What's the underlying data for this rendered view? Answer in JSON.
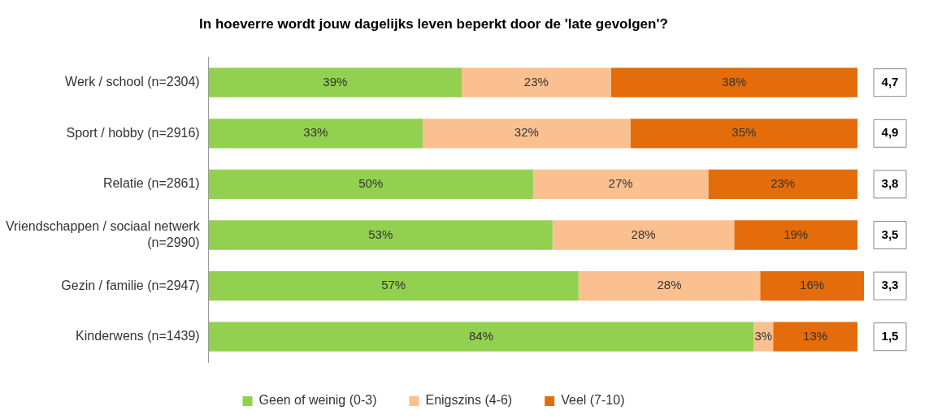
{
  "chart_data": {
    "type": "bar",
    "orientation": "horizontal",
    "stacked": true,
    "title": "In hoeverre wordt jouw dagelijks leven beperkt door de 'late gevolgen'?",
    "categories": [
      "Werk / school (n=2304)",
      "Sport / hobby (n=2916)",
      "Relatie (n=2861)",
      "Vriendschappen / sociaal netwerk (n=2990)",
      "Gezin / familie (n=2947)",
      "Kinderwens (n=1439)"
    ],
    "series": [
      {
        "name": "Geen of weinig (0-3)",
        "color": "#92d050",
        "values": [
          39,
          33,
          50,
          53,
          57,
          84
        ],
        "value_labels": [
          "39%",
          "33%",
          "50%",
          "53%",
          "57%",
          "84%"
        ]
      },
      {
        "name": "Enigszins (4-6)",
        "color": "#fac090",
        "values": [
          23,
          32,
          27,
          28,
          28,
          3
        ],
        "value_labels": [
          "23%",
          "32%",
          "27%",
          "28%",
          "28%",
          "3%"
        ]
      },
      {
        "name": "Veel (7-10)",
        "color": "#e46c0a",
        "values": [
          38,
          35,
          23,
          19,
          16,
          13
        ],
        "value_labels": [
          "38%",
          "35%",
          "23%",
          "19%",
          "16%",
          "13%"
        ]
      }
    ],
    "xlim": [
      0,
      101
    ],
    "tick_labels": "y",
    "legend": "bottom",
    "annotations": [
      "4,7",
      "4,9",
      "3,8",
      "3,5",
      "3,3",
      "1,5"
    ]
  }
}
